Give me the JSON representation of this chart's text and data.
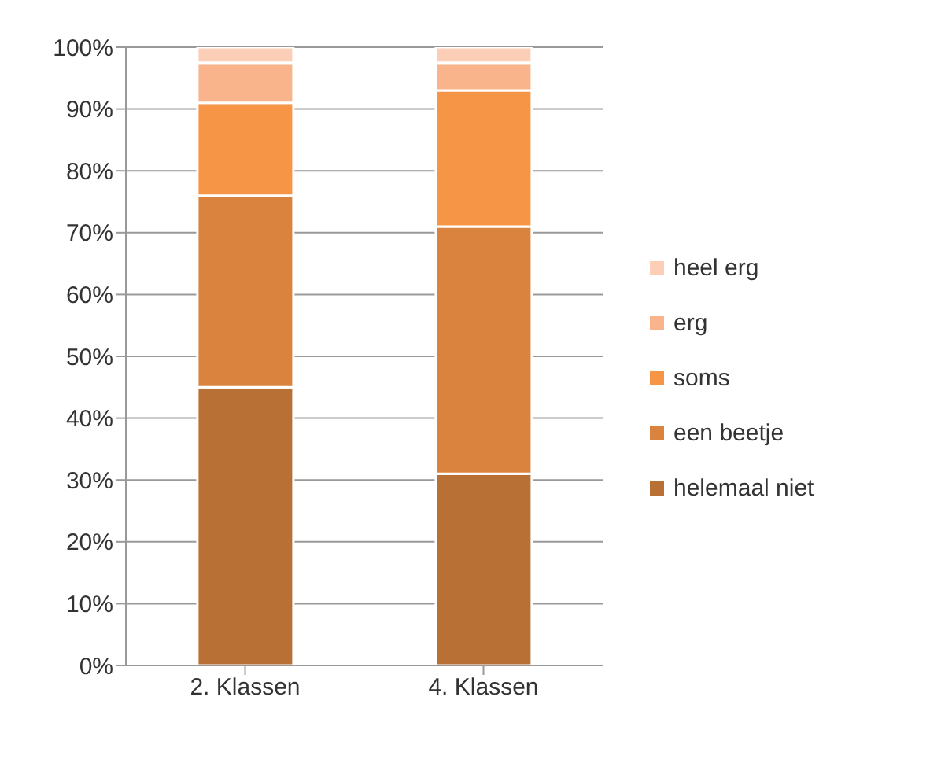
{
  "chart_data": {
    "type": "bar",
    "stacked": true,
    "categories": [
      "2. Klassen",
      "4. Klassen"
    ],
    "series": [
      {
        "name": "helemaal niet",
        "color": "#b87034",
        "values": [
          45,
          31
        ]
      },
      {
        "name": "een beetje",
        "color": "#da833f",
        "values": [
          31,
          40
        ]
      },
      {
        "name": "soms",
        "color": "#f69546",
        "values": [
          15,
          22
        ]
      },
      {
        "name": "erg",
        "color": "#f9b48c",
        "values": [
          6.5,
          4.5
        ]
      },
      {
        "name": "heel erg",
        "color": "#fcceb7",
        "values": [
          2.5,
          2.5
        ]
      }
    ],
    "ylim": [
      0,
      100
    ],
    "yticks": [
      {
        "value": 0,
        "label": "0%"
      },
      {
        "value": 10,
        "label": "10%"
      },
      {
        "value": 20,
        "label": "20%"
      },
      {
        "value": 30,
        "label": "30%"
      },
      {
        "value": 40,
        "label": "40%"
      },
      {
        "value": 50,
        "label": "50%"
      },
      {
        "value": 60,
        "label": "60%"
      },
      {
        "value": 70,
        "label": "70%"
      },
      {
        "value": 80,
        "label": "80%"
      },
      {
        "value": 90,
        "label": "90%"
      },
      {
        "value": 100,
        "label": "100%"
      }
    ],
    "grid": "y",
    "legend": "right"
  }
}
